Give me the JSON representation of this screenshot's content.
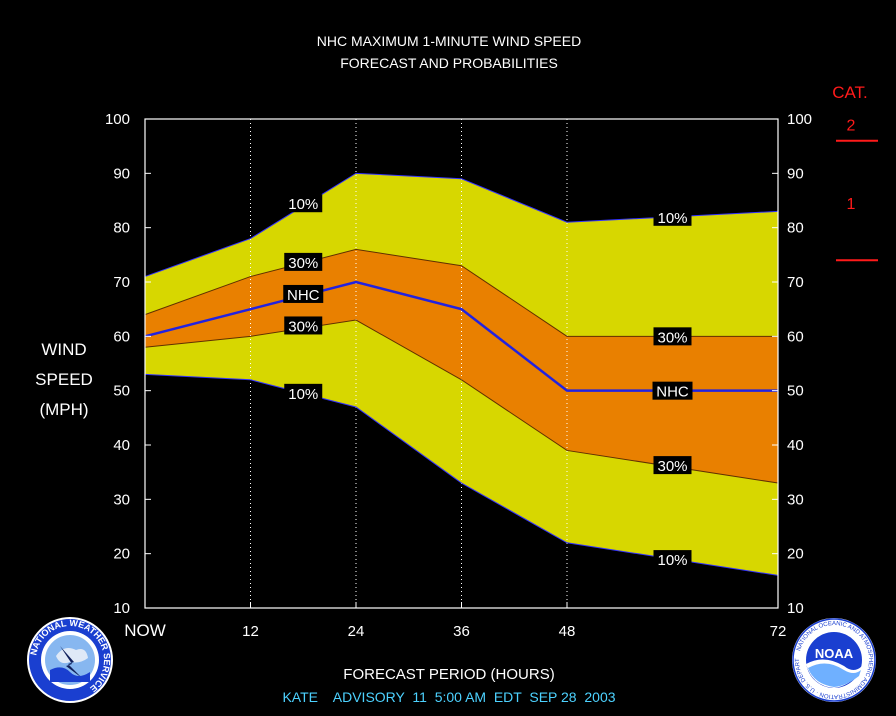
{
  "chart_data": {
    "type": "area",
    "title": "NHC MAXIMUM 1-MINUTE WIND SPEED",
    "subtitle": "FORECAST AND PROBABILITIES",
    "xlabel": "FORECAST PERIOD (HOURS)",
    "ylabel_lines": [
      "WIND",
      "SPEED",
      "(MPH)"
    ],
    "footer": "KATE    ADVISORY  11  5:00 AM  EDT  SEP 28  2003",
    "xlim": [
      0,
      72
    ],
    "ylim": [
      10,
      100
    ],
    "x_ticks": [
      {
        "value": 0,
        "label": "NOW"
      },
      {
        "value": 12,
        "label": "12"
      },
      {
        "value": 24,
        "label": "24"
      },
      {
        "value": 36,
        "label": "36"
      },
      {
        "value": 48,
        "label": "48"
      },
      {
        "value": 72,
        "label": "72"
      }
    ],
    "y_ticks": [
      10,
      20,
      30,
      40,
      50,
      60,
      70,
      80,
      90,
      100
    ],
    "x": [
      0,
      12,
      24,
      36,
      48,
      72
    ],
    "series": [
      {
        "name": "10%",
        "role": "upper-10",
        "values": [
          71,
          78,
          90,
          89,
          81,
          83
        ]
      },
      {
        "name": "30%",
        "role": "upper-30",
        "values": [
          64,
          71,
          76,
          73,
          60,
          60
        ]
      },
      {
        "name": "NHC",
        "role": "forecast",
        "values": [
          60,
          65,
          70,
          65,
          50,
          50
        ]
      },
      {
        "name": "30%",
        "role": "lower-30",
        "values": [
          58,
          60,
          63,
          52,
          39,
          33
        ]
      },
      {
        "name": "10%",
        "role": "lower-10",
        "values": [
          53,
          52,
          47,
          33,
          22,
          16
        ]
      }
    ],
    "band_labels": [
      {
        "text": "10%",
        "x": 18,
        "y": 84.5
      },
      {
        "text": "30%",
        "x": 18,
        "y": 73.7
      },
      {
        "text": "NHC",
        "x": 18,
        "y": 67.8
      },
      {
        "text": "30%",
        "x": 18,
        "y": 62.0
      },
      {
        "text": "10%",
        "x": 18,
        "y": 49.6
      },
      {
        "text": "10%",
        "x": 60,
        "y": 82.0
      },
      {
        "text": "30%",
        "x": 60,
        "y": 60.0
      },
      {
        "text": "NHC",
        "x": 60,
        "y": 50.0
      },
      {
        "text": "30%",
        "x": 60,
        "y": 36.3
      },
      {
        "text": "10%",
        "x": 60,
        "y": 19.0
      }
    ],
    "category_scale": {
      "title": "CAT.",
      "labels": [
        {
          "text": "2",
          "y": 99
        },
        {
          "text": "1",
          "y": 84.5
        }
      ],
      "thresholds": [
        96,
        74
      ]
    },
    "colors": {
      "background": "#000000",
      "outer_band": "#d7d700",
      "inner_band": "#e98000",
      "forecast_line": "#2222e0",
      "edge_line": "#3333ff",
      "category": "#ff1a1a"
    },
    "grid": "dotted-vertical"
  },
  "logos": {
    "left": {
      "icon": "nws-logo-icon",
      "text": "NATIONAL WEATHER SERVICE"
    },
    "right": {
      "icon": "noaa-logo-icon",
      "text": "NOAA"
    }
  }
}
